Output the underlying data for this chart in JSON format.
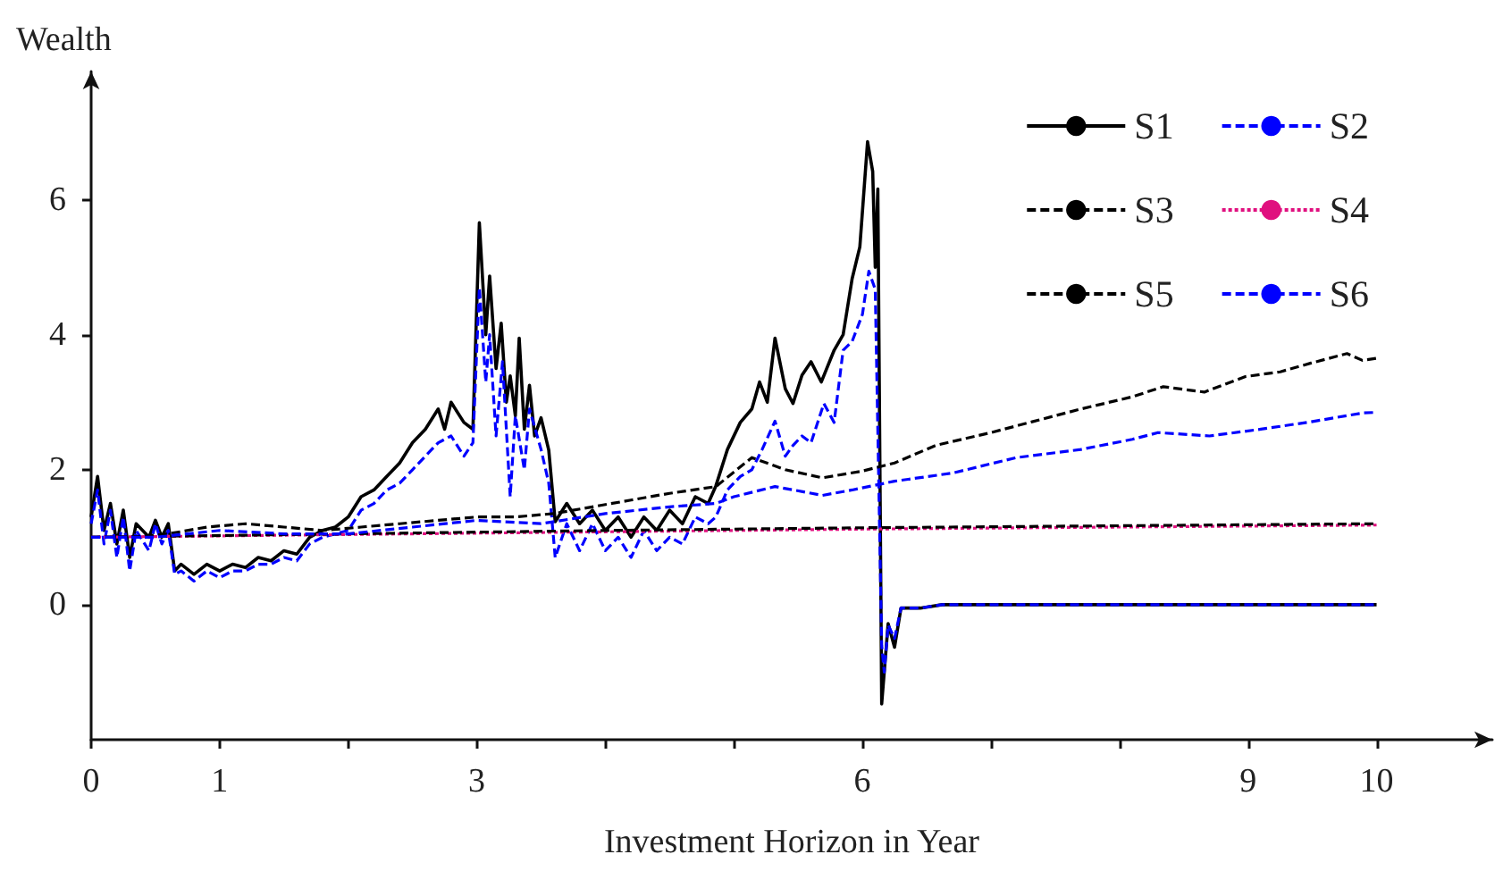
{
  "chart_data": {
    "type": "line",
    "xlabel": "Investment Horizon in Year",
    "ylabel": "Wealth",
    "xlim": [
      0,
      10.9
    ],
    "ylim": [
      -2,
      7.9
    ],
    "xticks": [
      0,
      1,
      {
        "value": 2,
        "label": null
      },
      3,
      {
        "value": 4,
        "label": null
      },
      {
        "value": 5,
        "label": null
      },
      6,
      {
        "value": 7,
        "label": null
      },
      {
        "value": 8,
        "label": null
      },
      9,
      10
    ],
    "yticks": [
      0,
      2,
      4,
      6
    ],
    "grid": false,
    "legend": "top right",
    "marker": "none",
    "series": [
      {
        "name": "S1",
        "color": "#000000",
        "line_style": "solid",
        "x": [
          0,
          0.05,
          0.1,
          0.15,
          0.2,
          0.25,
          0.3,
          0.35,
          0.45,
          0.5,
          0.55,
          0.6,
          0.65,
          0.7,
          0.8,
          0.9,
          1.0,
          1.1,
          1.2,
          1.3,
          1.4,
          1.5,
          1.6,
          1.7,
          1.8,
          1.9,
          2.0,
          2.1,
          2.2,
          2.3,
          2.4,
          2.5,
          2.6,
          2.7,
          2.75,
          2.8,
          2.9,
          2.97,
          3.02,
          3.07,
          3.1,
          3.15,
          3.19,
          3.23,
          3.26,
          3.3,
          3.33,
          3.37,
          3.41,
          3.45,
          3.5,
          3.56,
          3.61,
          3.7,
          3.8,
          3.9,
          4.0,
          4.1,
          4.2,
          4.3,
          4.4,
          4.5,
          4.6,
          4.7,
          4.8,
          4.86,
          4.95,
          5.05,
          5.14,
          5.2,
          5.26,
          5.32,
          5.4,
          5.46,
          5.53,
          5.6,
          5.68,
          5.78,
          5.85,
          5.92,
          5.98,
          6.04,
          6.08,
          6.1,
          6.12,
          6.15,
          6.2,
          6.25,
          6.3,
          6.45,
          6.62,
          10
        ],
        "values": [
          1.3,
          1.9,
          1.1,
          1.5,
          0.9,
          1.4,
          0.7,
          1.2,
          1.0,
          1.25,
          1.0,
          1.2,
          0.5,
          0.6,
          0.45,
          0.6,
          0.5,
          0.6,
          0.55,
          0.7,
          0.65,
          0.8,
          0.75,
          1.0,
          1.1,
          1.15,
          1.3,
          1.6,
          1.7,
          1.9,
          2.1,
          2.4,
          2.6,
          2.9,
          2.6,
          3.0,
          2.7,
          2.6,
          5.66,
          4.0,
          4.87,
          3.5,
          4.17,
          3.0,
          3.39,
          2.8,
          3.95,
          2.6,
          3.25,
          2.5,
          2.77,
          2.29,
          1.23,
          1.5,
          1.2,
          1.4,
          1.1,
          1.3,
          1.0,
          1.3,
          1.1,
          1.4,
          1.2,
          1.6,
          1.5,
          1.76,
          2.3,
          2.7,
          2.9,
          3.3,
          3.0,
          3.95,
          3.2,
          2.98,
          3.4,
          3.6,
          3.3,
          3.77,
          4.0,
          4.83,
          5.3,
          6.86,
          6.42,
          5.0,
          6.16,
          -1.47,
          -0.28,
          -0.63,
          -0.05,
          -0.05,
          0,
          0
        ]
      },
      {
        "name": "S2",
        "color": "#0000ff",
        "line_style": "dashed",
        "x": [
          0,
          0.05,
          0.1,
          0.15,
          0.2,
          0.25,
          0.3,
          0.35,
          0.45,
          0.5,
          0.55,
          0.6,
          0.65,
          0.7,
          0.8,
          0.9,
          1.0,
          1.1,
          1.2,
          1.3,
          1.4,
          1.5,
          1.6,
          1.7,
          1.8,
          1.9,
          2.0,
          2.1,
          2.2,
          2.3,
          2.4,
          2.5,
          2.6,
          2.7,
          2.8,
          2.9,
          2.97,
          3.02,
          3.07,
          3.1,
          3.15,
          3.2,
          3.26,
          3.3,
          3.37,
          3.41,
          3.5,
          3.56,
          3.61,
          3.7,
          3.8,
          3.9,
          4.0,
          4.1,
          4.2,
          4.3,
          4.4,
          4.5,
          4.6,
          4.7,
          4.8,
          4.86,
          4.95,
          5.05,
          5.14,
          5.22,
          5.32,
          5.4,
          5.46,
          5.53,
          5.6,
          5.7,
          5.78,
          5.85,
          5.92,
          6.0,
          6.05,
          6.1,
          6.15,
          6.17,
          6.2,
          6.25,
          6.3,
          6.45,
          6.62,
          10
        ],
        "values": [
          1.2,
          1.7,
          0.9,
          1.4,
          0.7,
          1.3,
          0.5,
          1.1,
          0.8,
          1.2,
          0.9,
          1.1,
          0.45,
          0.5,
          0.35,
          0.5,
          0.4,
          0.5,
          0.5,
          0.6,
          0.6,
          0.7,
          0.65,
          0.9,
          1.0,
          1.05,
          1.1,
          1.4,
          1.5,
          1.7,
          1.8,
          2.0,
          2.2,
          2.4,
          2.5,
          2.2,
          2.4,
          4.7,
          3.3,
          4.0,
          2.5,
          3.6,
          1.6,
          2.8,
          2.0,
          2.9,
          2.3,
          1.8,
          0.7,
          1.2,
          0.8,
          1.2,
          0.8,
          1.0,
          0.7,
          1.1,
          0.8,
          1.0,
          0.9,
          1.3,
          1.2,
          1.3,
          1.7,
          1.9,
          2.0,
          2.3,
          2.72,
          2.2,
          2.36,
          2.5,
          2.4,
          2.98,
          2.7,
          3.77,
          3.9,
          4.3,
          4.94,
          4.67,
          -0.6,
          -1.0,
          -0.3,
          -0.5,
          -0.05,
          -0.05,
          0,
          0
        ]
      },
      {
        "name": "S3",
        "color": "#000000",
        "line_style": "dashed",
        "x": [
          0,
          0.3,
          0.6,
          0.9,
          1.2,
          1.5,
          1.8,
          2.1,
          2.4,
          2.7,
          3.0,
          3.3,
          3.6,
          3.9,
          4.2,
          4.5,
          4.86,
          5.14,
          5.4,
          5.69,
          6.0,
          6.25,
          6.57,
          7.0,
          7.32,
          7.7,
          8.1,
          8.34,
          8.66,
          8.98,
          9.25,
          9.49,
          9.77,
          9.89,
          10
        ],
        "values": [
          1.0,
          1.0,
          1.05,
          1.15,
          1.2,
          1.15,
          1.1,
          1.15,
          1.2,
          1.25,
          1.3,
          1.3,
          1.35,
          1.45,
          1.55,
          1.65,
          1.75,
          2.18,
          2.0,
          1.88,
          1.98,
          2.1,
          2.36,
          2.55,
          2.71,
          2.9,
          3.08,
          3.23,
          3.15,
          3.38,
          3.45,
          3.58,
          3.72,
          3.62,
          3.65
        ]
      },
      {
        "name": "S4",
        "color": "#e0107f",
        "line_style": "dotted",
        "x": [
          0,
          2,
          4,
          6,
          8,
          10
        ],
        "values": [
          1.0,
          1.04,
          1.08,
          1.12,
          1.15,
          1.18
        ]
      },
      {
        "name": "S5",
        "color": "#000000",
        "line_style": "dashed",
        "x": [
          0,
          2,
          4,
          6,
          8,
          10
        ],
        "values": [
          1.0,
          1.05,
          1.1,
          1.14,
          1.17,
          1.2
        ]
      },
      {
        "name": "S6",
        "color": "#0000ff",
        "line_style": "dashed",
        "x": [
          0,
          0.5,
          1.0,
          1.5,
          2.0,
          2.5,
          3.0,
          3.5,
          4.0,
          4.5,
          4.86,
          5.0,
          5.32,
          5.69,
          5.92,
          6.25,
          6.7,
          7.2,
          7.7,
          8.1,
          8.3,
          8.7,
          9.1,
          9.49,
          9.89,
          10
        ],
        "values": [
          1.0,
          1.0,
          1.1,
          1.05,
          1.05,
          1.15,
          1.25,
          1.2,
          1.35,
          1.45,
          1.5,
          1.6,
          1.75,
          1.62,
          1.7,
          1.83,
          1.95,
          2.18,
          2.3,
          2.45,
          2.55,
          2.5,
          2.6,
          2.71,
          2.84,
          2.85
        ]
      }
    ]
  }
}
